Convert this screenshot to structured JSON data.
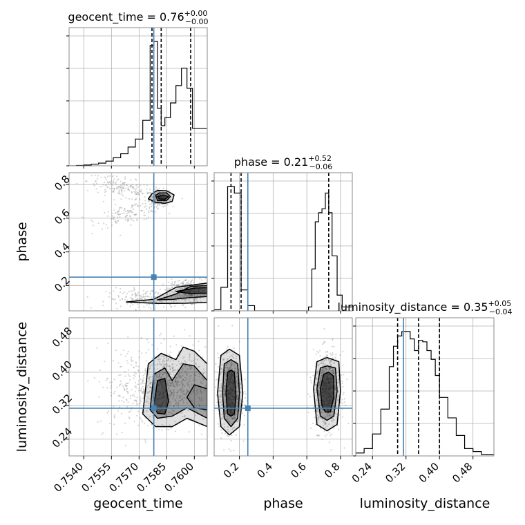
{
  "chart_data": {
    "type": "corner",
    "parameters": [
      "geocent_time",
      "phase",
      "luminosity_distance"
    ],
    "truths": {
      "geocent_time": 0.7578,
      "phase": 0.25,
      "luminosity_distance": 0.314
    },
    "colors": {
      "truth": "#4682b4",
      "hist": "#000000",
      "grid": "#b0b0b0",
      "scatter": "#888888"
    },
    "grid": true,
    "titles": [
      {
        "param": "geocent_time",
        "prefix": "geocent_time = ",
        "value": "0.76",
        "plus": "+0.00",
        "minus": "−0.00"
      },
      {
        "param": "phase",
        "prefix": "phase = ",
        "value": "0.21",
        "plus": "+0.52",
        "minus": "−0.06"
      },
      {
        "param": "luminosity_distance",
        "prefix": "luminosity_distance = ",
        "value": "0.35",
        "plus": "+0.05",
        "minus": "−0.04"
      }
    ],
    "axes": {
      "geocent_time": {
        "range": [
          0.7532,
          0.7607
        ],
        "ticks": [
          0.754,
          0.7555,
          0.757,
          0.7585,
          0.76
        ],
        "tick_labels": [
          "0.7540",
          "0.7555",
          "0.7570",
          "0.7585",
          "0.7600"
        ],
        "label": "geocent_time"
      },
      "phase": {
        "range": [
          0.05,
          0.87
        ],
        "ticks": [
          0.2,
          0.4,
          0.6,
          0.8
        ],
        "tick_labels": [
          "0.2",
          "0.4",
          "0.6",
          "0.8"
        ],
        "label": "phase"
      },
      "luminosity_distance": {
        "range": [
          0.2,
          0.53
        ],
        "ticks": [
          0.24,
          0.32,
          0.4,
          0.48
        ],
        "tick_labels": [
          "0.24",
          "0.32",
          "0.40",
          "0.48"
        ],
        "label": "luminosity_distance"
      }
    },
    "histograms": {
      "geocent_time": {
        "bin_edges": [
          0.7532,
          0.7536,
          0.754,
          0.7544,
          0.7548,
          0.7552,
          0.7556,
          0.756,
          0.7564,
          0.7568,
          0.7572,
          0.7576,
          0.7578,
          0.758,
          0.7582,
          0.7584,
          0.7587,
          0.759,
          0.7593,
          0.7596,
          0.7599,
          0.7607
        ],
        "counts": [
          0,
          0.003,
          0.006,
          0.012,
          0.02,
          0.035,
          0.06,
          0.09,
          0.14,
          0.2,
          0.34,
          0.9,
          0.93,
          0.43,
          0.3,
          0.36,
          0.47,
          0.6,
          0.73,
          0.58,
          0.28
        ],
        "quantiles": [
          0.7577,
          0.7582,
          0.7598
        ]
      },
      "phase": {
        "bin_edges": [
          0.05,
          0.09,
          0.13,
          0.17,
          0.21,
          0.25,
          0.29,
          0.61,
          0.63,
          0.65,
          0.67,
          0.69,
          0.71,
          0.73,
          0.75,
          0.78,
          0.81,
          0.87
        ],
        "counts": [
          0.01,
          0.18,
          0.95,
          0.9,
          0.16,
          0.04,
          0,
          0.03,
          0.32,
          0.68,
          0.75,
          0.78,
          0.9,
          0.75,
          0.42,
          0.12,
          0.03
        ],
        "quantiles": [
          0.15,
          0.21,
          0.73
        ]
      },
      "luminosity_distance": {
        "bin_edges": [
          0.2,
          0.22,
          0.24,
          0.26,
          0.28,
          0.29,
          0.3,
          0.31,
          0.32,
          0.33,
          0.34,
          0.35,
          0.36,
          0.37,
          0.38,
          0.39,
          0.4,
          0.42,
          0.44,
          0.46,
          0.48,
          0.5,
          0.53
        ],
        "counts": [
          0.02,
          0.05,
          0.15,
          0.32,
          0.61,
          0.75,
          0.82,
          0.85,
          0.85,
          0.8,
          0.72,
          0.79,
          0.78,
          0.72,
          0.66,
          0.55,
          0.4,
          0.26,
          0.14,
          0.05,
          0.03,
          0.01
        ],
        "quantiles": [
          0.3,
          0.35,
          0.4
        ]
      }
    },
    "pairs": [
      {
        "x": "geocent_time",
        "y": "phase",
        "clusters": [
          {
            "cx": 0.7581,
            "cy": 0.72,
            "sx": 0.00027,
            "sy": 0.025,
            "n": 260
          },
          {
            "cx": 0.756,
            "cy": 0.78,
            "sx": 0.0009,
            "sy": 0.03,
            "n": 160,
            "slope": -22
          },
          {
            "cx": 0.7565,
            "cy": 0.63,
            "sx": 0.0009,
            "sy": 0.03,
            "n": 130,
            "slope": 22
          },
          {
            "cx": 0.7596,
            "cy": 0.17,
            "sx": 0.0005,
            "sy": 0.035,
            "n": 320
          },
          {
            "cx": 0.7575,
            "cy": 0.12,
            "sx": 0.0011,
            "sy": 0.03,
            "n": 200
          }
        ],
        "contours": [
          [
            [
              0.7577,
              0.745
            ],
            [
              0.758,
              0.765
            ],
            [
              0.7585,
              0.763
            ],
            [
              0.7589,
              0.738
            ],
            [
              0.7588,
              0.7
            ],
            [
              0.7584,
              0.688
            ],
            [
              0.7579,
              0.694
            ],
            [
              0.7575,
              0.715
            ]
          ],
          [
            [
              0.7579,
              0.735
            ],
            [
              0.7581,
              0.75
            ],
            [
              0.7585,
              0.75
            ],
            [
              0.7587,
              0.728
            ],
            [
              0.7585,
              0.705
            ],
            [
              0.758,
              0.705
            ]
          ],
          [
            [
              0.758,
              0.728
            ],
            [
              0.7583,
              0.738
            ],
            [
              0.7586,
              0.728
            ],
            [
              0.7584,
              0.712
            ],
            [
              0.7581,
              0.714
            ]
          ],
          [
            [
              0.7563,
              0.103
            ],
            [
              0.7578,
              0.118
            ],
            [
              0.759,
              0.19
            ],
            [
              0.7607,
              0.215
            ],
            [
              0.7607,
              0.1
            ],
            [
              0.7595,
              0.095
            ],
            [
              0.758,
              0.094
            ]
          ],
          [
            [
              0.758,
              0.115
            ],
            [
              0.759,
              0.15
            ],
            [
              0.7598,
              0.195
            ],
            [
              0.7607,
              0.2
            ],
            [
              0.7607,
              0.135
            ],
            [
              0.7597,
              0.128
            ],
            [
              0.7588,
              0.118
            ]
          ],
          [
            [
              0.759,
              0.165
            ],
            [
              0.76,
              0.185
            ],
            [
              0.7607,
              0.188
            ],
            [
              0.7607,
              0.155
            ],
            [
              0.7598,
              0.152
            ]
          ]
        ]
      },
      {
        "x": "geocent_time",
        "y": "luminosity_distance",
        "clusters": [
          {
            "cx": 0.7586,
            "cy": 0.37,
            "sx": 0.001,
            "sy": 0.045,
            "n": 650
          },
          {
            "cx": 0.757,
            "cy": 0.36,
            "sx": 0.0012,
            "sy": 0.05,
            "n": 200
          }
        ],
        "contours": [
          [
            [
              0.7572,
              0.3
            ],
            [
              0.7575,
              0.42
            ],
            [
              0.7582,
              0.445
            ],
            [
              0.759,
              0.43
            ],
            [
              0.7594,
              0.46
            ],
            [
              0.76,
              0.45
            ],
            [
              0.7607,
              0.42
            ],
            [
              0.7607,
              0.27
            ],
            [
              0.7596,
              0.29
            ],
            [
              0.7588,
              0.27
            ],
            [
              0.7579,
              0.27
            ]
          ],
          [
            [
              0.7576,
              0.31
            ],
            [
              0.7578,
              0.395
            ],
            [
              0.7584,
              0.41
            ],
            [
              0.7588,
              0.38
            ],
            [
              0.7594,
              0.42
            ],
            [
              0.76,
              0.415
            ],
            [
              0.7607,
              0.38
            ],
            [
              0.7607,
              0.29
            ],
            [
              0.7596,
              0.315
            ],
            [
              0.7588,
              0.295
            ],
            [
              0.758,
              0.29
            ]
          ],
          [
            [
              0.7578,
              0.32
            ],
            [
              0.758,
              0.38
            ],
            [
              0.7584,
              0.385
            ],
            [
              0.7586,
              0.33
            ],
            [
              0.7584,
              0.3
            ],
            [
              0.758,
              0.302
            ]
          ],
          [
            [
              0.7596,
              0.34
            ],
            [
              0.76,
              0.37
            ],
            [
              0.7607,
              0.36
            ],
            [
              0.7607,
              0.31
            ],
            [
              0.76,
              0.315
            ]
          ]
        ]
      },
      {
        "x": "phase",
        "y": "luminosity_distance",
        "clusters": [
          {
            "cx": 0.145,
            "cy": 0.35,
            "sx": 0.035,
            "sy": 0.045,
            "n": 650
          },
          {
            "cx": 0.72,
            "cy": 0.355,
            "sx": 0.04,
            "sy": 0.045,
            "n": 700
          }
        ],
        "contours": [
          [
            [
              0.07,
              0.35
            ],
            [
              0.09,
              0.44
            ],
            [
              0.14,
              0.455
            ],
            [
              0.2,
              0.44
            ],
            [
              0.22,
              0.35
            ],
            [
              0.2,
              0.27
            ],
            [
              0.14,
              0.25
            ],
            [
              0.09,
              0.27
            ]
          ],
          [
            [
              0.1,
              0.35
            ],
            [
              0.11,
              0.42
            ],
            [
              0.15,
              0.43
            ],
            [
              0.19,
              0.42
            ],
            [
              0.2,
              0.35
            ],
            [
              0.19,
              0.29
            ],
            [
              0.15,
              0.27
            ],
            [
              0.11,
              0.29
            ]
          ],
          [
            [
              0.12,
              0.35
            ],
            [
              0.13,
              0.4
            ],
            [
              0.15,
              0.405
            ],
            [
              0.17,
              0.4
            ],
            [
              0.18,
              0.34
            ],
            [
              0.17,
              0.3
            ],
            [
              0.15,
              0.295
            ],
            [
              0.13,
              0.3
            ]
          ],
          [
            [
              0.64,
              0.36
            ],
            [
              0.66,
              0.425
            ],
            [
              0.72,
              0.435
            ],
            [
              0.79,
              0.425
            ],
            [
              0.8,
              0.355
            ],
            [
              0.78,
              0.275
            ],
            [
              0.72,
              0.26
            ],
            [
              0.66,
              0.275
            ]
          ],
          [
            [
              0.66,
              0.36
            ],
            [
              0.68,
              0.41
            ],
            [
              0.72,
              0.415
            ],
            [
              0.77,
              0.41
            ],
            [
              0.78,
              0.355
            ],
            [
              0.76,
              0.295
            ],
            [
              0.72,
              0.285
            ],
            [
              0.68,
              0.295
            ]
          ],
          [
            [
              0.68,
              0.36
            ],
            [
              0.7,
              0.395
            ],
            [
              0.73,
              0.4
            ],
            [
              0.76,
              0.39
            ],
            [
              0.76,
              0.34
            ],
            [
              0.74,
              0.305
            ],
            [
              0.71,
              0.305
            ],
            [
              0.69,
              0.32
            ]
          ]
        ]
      }
    ]
  }
}
